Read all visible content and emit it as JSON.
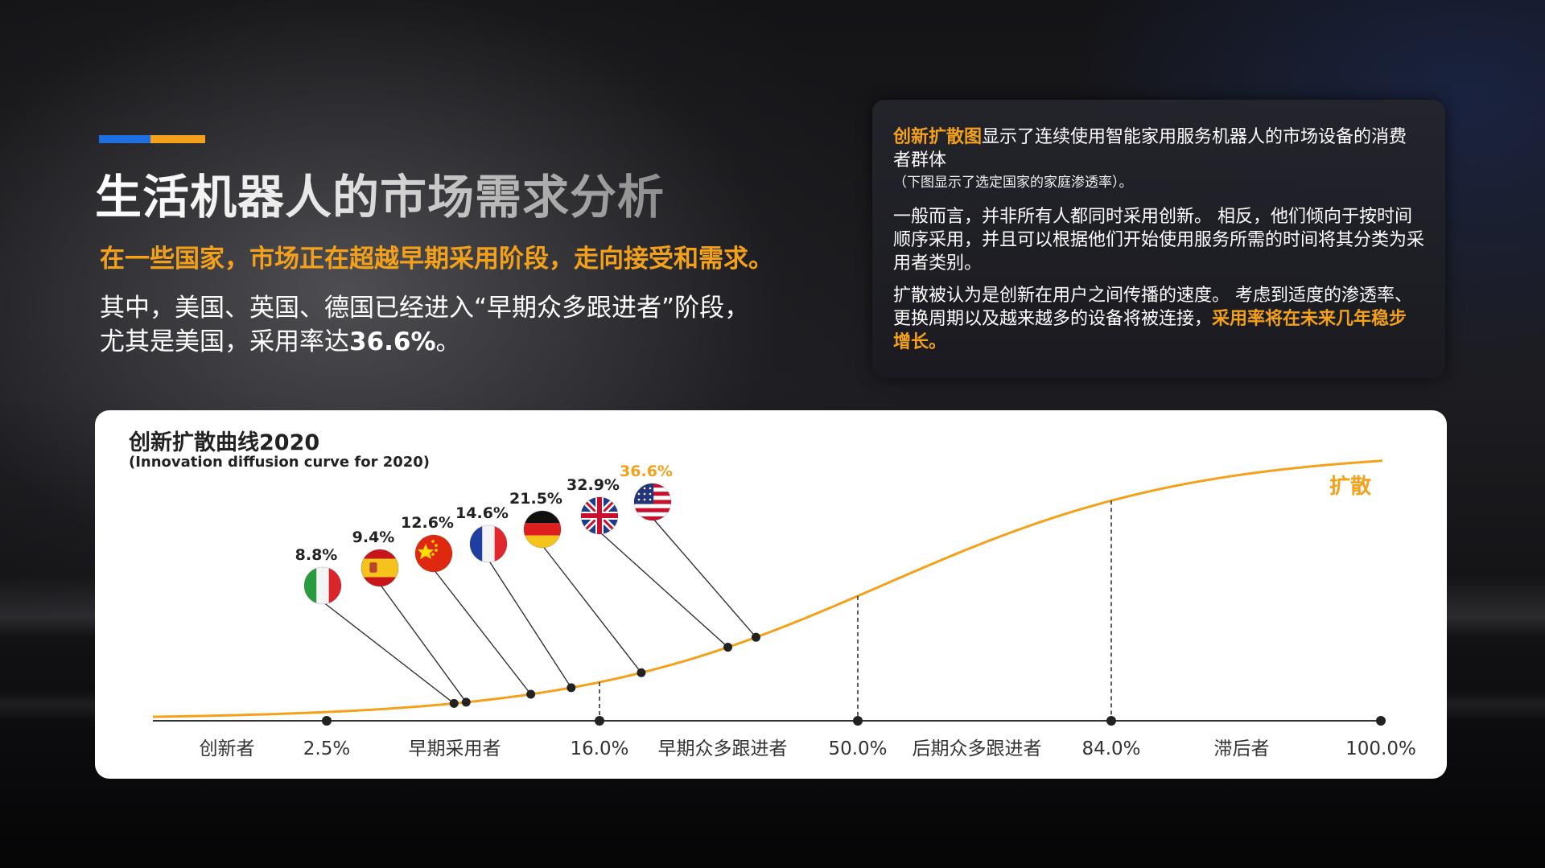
{
  "page": {
    "title": "生活机器人的市场需求分析",
    "subtitle": "在一些国家，市场正在超越早期采用阶段，走向接受和需求。",
    "desc_line1": "其中，美国、英国、德国已经进入“早期众多跟进者”阶段，",
    "desc_line2_prefix": "尤其是美国，采用率达",
    "desc_line2_value": "36.6%",
    "desc_line2_suffix": "。",
    "colors": {
      "accent_orange": "#f3a11b",
      "accent_blue": "#1f6fe0",
      "background": "#0a0a0c"
    }
  },
  "info_panel": {
    "p1_highlight": "创新扩散图",
    "p1_text": "显示了连续使用智能家用服务机器人的市场设备的消费者群体",
    "p1_small": "（下图显示了选定国家的家庭渗透率）。",
    "p2_text": "一般而言，并非所有人都同时采用创新。 相反，他们倾向于按时间顺序采用，并且可以根据他们开始使用服务所需的时间将其分类为采用者类别。",
    "p3_text": "扩散被认为是创新在用户之间传播的速度。 考虑到适度的渗透率、更换周期以及越来越多的设备将被连接，",
    "p3_highlight": "采用率将在未来几年稳步增长。"
  },
  "chart_data": {
    "type": "line",
    "title": "创新扩散曲线2020",
    "subtitle": "(Innovation diffusion curve for 2020)",
    "curve_label": "扩散",
    "x_axis_ticks": [
      "2.5%",
      "16.0%",
      "50.0%",
      "84.0%",
      "100.0%"
    ],
    "x_axis_tick_values": [
      2.5,
      16.0,
      50.0,
      84.0,
      100.0
    ],
    "segment_labels": [
      "创新者",
      "早期采用者",
      "早期众多跟进者",
      "后期众多跟进者",
      "滞后者"
    ],
    "countries": [
      {
        "flag": "italy-flag-icon",
        "value": 8.8,
        "label": "8.8%"
      },
      {
        "flag": "spain-flag-icon",
        "value": 9.4,
        "label": "9.4%"
      },
      {
        "flag": "china-flag-icon",
        "value": 12.6,
        "label": "12.6%"
      },
      {
        "flag": "france-flag-icon",
        "value": 14.6,
        "label": "14.6%"
      },
      {
        "flag": "germany-flag-icon",
        "value": 21.5,
        "label": "21.5%"
      },
      {
        "flag": "uk-flag-icon",
        "value": 32.9,
        "label": "32.9%"
      },
      {
        "flag": "usa-flag-icon",
        "value": 36.6,
        "label": "36.6%",
        "highlight": true
      }
    ],
    "colors": {
      "curve": "#f3a11b",
      "axis": "#333333",
      "highlight_label": "#f3a11b"
    }
  }
}
